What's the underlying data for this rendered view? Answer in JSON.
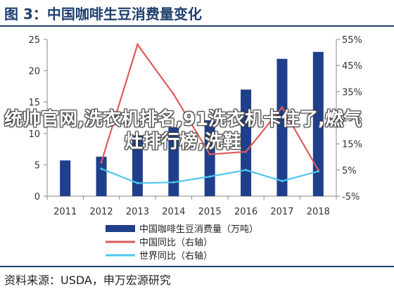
{
  "header": {
    "title": "图 3：中国咖啡生豆消费量变化"
  },
  "footer": {
    "source": "资料来源：USDA，申万宏源研究"
  },
  "overlay": {
    "text": "统帅官网,洗衣机排名,91洗衣机卡住了,燃气灶排行榜,洗鞋"
  },
  "colors": {
    "bar": "#1f3f8a",
    "china_yoy": "#e05a5a",
    "world_yoy": "#4cc7f0",
    "axis": "#888888",
    "title": "#1f3f6e"
  },
  "chart_data": {
    "type": "bar",
    "categories": [
      "2011",
      "2012",
      "2013",
      "2014",
      "2015",
      "2016",
      "2017",
      "2018"
    ],
    "left_axis": {
      "ylim": [
        0,
        25
      ],
      "ticks": [
        0,
        5,
        10,
        15,
        20,
        25
      ]
    },
    "right_axis": {
      "ylim": [
        -5,
        55
      ],
      "ticks": [
        "-5%",
        "5%",
        "15%",
        "25%",
        "35%",
        "45%",
        "55%"
      ],
      "tick_values": [
        -5,
        5,
        15,
        25,
        35,
        45,
        55
      ]
    },
    "series": [
      {
        "name": "中国咖啡生豆消费量（万吨）",
        "kind": "bar",
        "axis": "left",
        "values": [
          5.7,
          6.3,
          9.7,
          11.0,
          12.1,
          17.0,
          21.9,
          23.0
        ]
      },
      {
        "name": "中国同比（右轴）",
        "kind": "line",
        "axis": "right",
        "values": null,
        "points": [
          [
            2012,
            8
          ],
          [
            2013,
            53
          ],
          [
            2014,
            34
          ],
          [
            2015,
            11
          ],
          [
            2016,
            12
          ],
          [
            2017,
            29
          ],
          [
            2018,
            5
          ]
        ]
      },
      {
        "name": "世界同比（右轴）",
        "kind": "line",
        "axis": "right",
        "values": null,
        "points": [
          [
            2012,
            5.5
          ],
          [
            2013,
            0
          ],
          [
            2014,
            0.3
          ],
          [
            2015,
            2.5
          ],
          [
            2016,
            5
          ],
          [
            2017,
            0.8
          ],
          [
            2018,
            4.5
          ]
        ]
      }
    ],
    "legend_position": "bottom"
  }
}
